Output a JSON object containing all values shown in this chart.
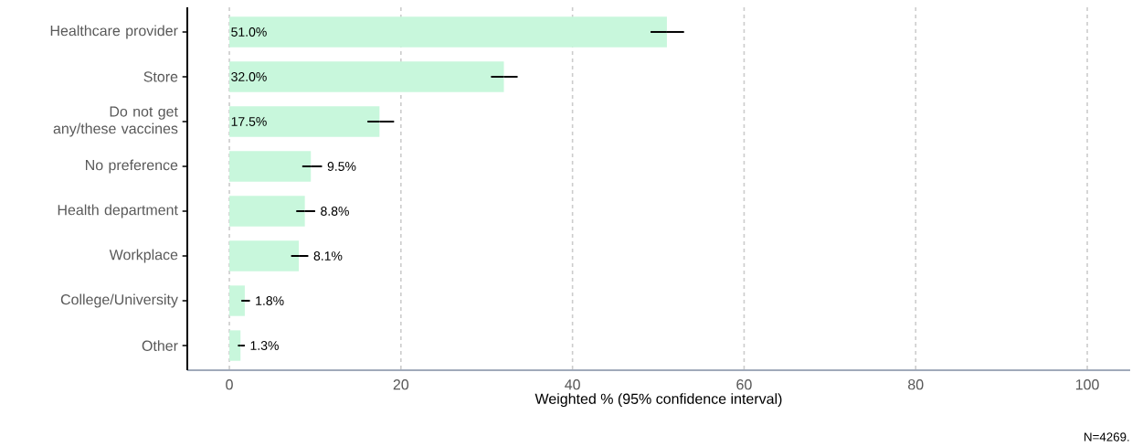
{
  "chart_data": {
    "type": "bar",
    "orientation": "horizontal",
    "xlabel": "Weighted % (95% confidence interval)",
    "categories": [
      "Healthcare provider",
      "Store",
      "Do not get any/these vaccines",
      "No preference",
      "Health department",
      "Workplace",
      "College/University",
      "Other"
    ],
    "values": [
      51.0,
      32.0,
      17.5,
      9.5,
      8.8,
      8.1,
      1.8,
      1.3
    ],
    "value_labels": [
      "51.0%",
      "32.0%",
      "17.5%",
      "9.5%",
      "8.8%",
      "8.1%",
      "1.8%",
      "1.3%"
    ],
    "errors": [
      [
        49.1,
        53.0
      ],
      [
        30.5,
        33.6
      ],
      [
        16.1,
        19.2
      ],
      [
        8.5,
        10.8
      ],
      [
        7.8,
        10.0
      ],
      [
        7.2,
        9.2
      ],
      [
        1.4,
        2.4
      ],
      [
        1.0,
        1.8
      ]
    ],
    "color": "#c8f7dc",
    "xlim": [
      -4.9,
      105
    ],
    "xticks": [
      0,
      20,
      40,
      60,
      80,
      100
    ],
    "grid": "x",
    "annotations": [
      "N=4269."
    ]
  }
}
